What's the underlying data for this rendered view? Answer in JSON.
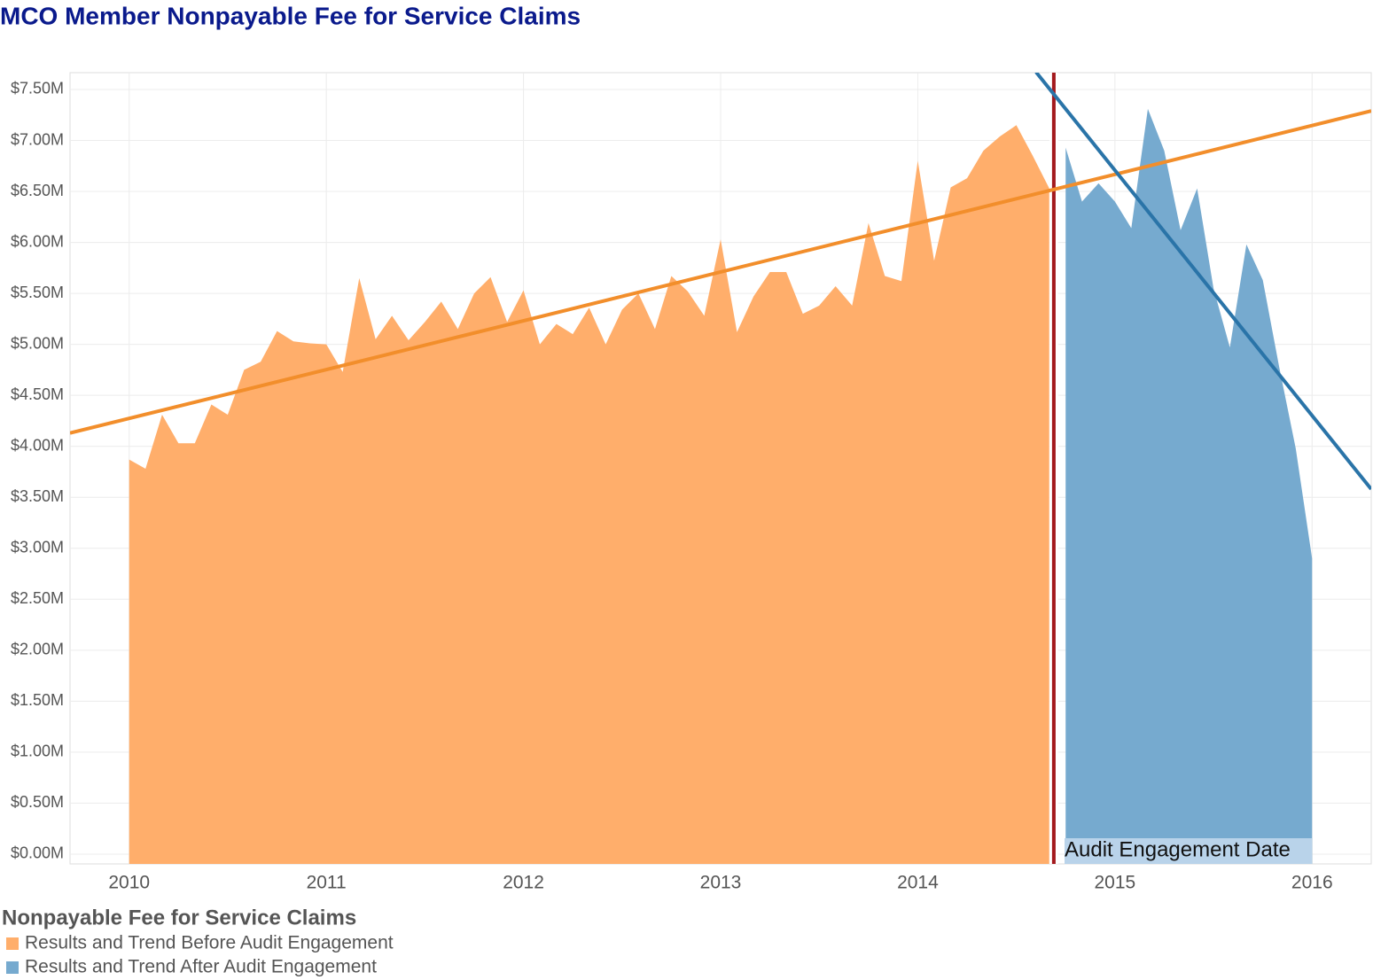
{
  "chart_data": {
    "type": "area",
    "title": "MCO Member Nonpayable Fee for Service Claims",
    "xlim": [
      2009.7,
      2016.3
    ],
    "xticks": [
      2010,
      2011,
      2012,
      2013,
      2014,
      2015,
      2016
    ],
    "ylim": [
      -0.096,
      7.665
    ],
    "yticks": [
      {
        "value": 0,
        "label": "$0.00M"
      },
      {
        "value": 0.5,
        "label": "$0.50M"
      },
      {
        "value": 1,
        "label": "$1.00M"
      },
      {
        "value": 1.5,
        "label": "$1.50M"
      },
      {
        "value": 2,
        "label": "$2.00M"
      },
      {
        "value": 2.5,
        "label": "$2.50M"
      },
      {
        "value": 3,
        "label": "$3.00M"
      },
      {
        "value": 3.5,
        "label": "$3.50M"
      },
      {
        "value": 4,
        "label": "$4.00M"
      },
      {
        "value": 4.5,
        "label": "$4.50M"
      },
      {
        "value": 5,
        "label": "$5.00M"
      },
      {
        "value": 5.5,
        "label": "$5.50M"
      },
      {
        "value": 6,
        "label": "$6.00M"
      },
      {
        "value": 6.5,
        "label": "$6.50M"
      },
      {
        "value": 7,
        "label": "$7.00M"
      },
      {
        "value": 7.5,
        "label": "$7.50M"
      }
    ],
    "grid": true,
    "legend_title": "Nonpayable Fee for Service Claims",
    "series": [
      {
        "name": "Results and Trend Before Audit Engagement",
        "color": "#ffae6b",
        "trend_color": "#f28e2b",
        "x": [
          2010.0,
          2010.083,
          2010.167,
          2010.25,
          2010.333,
          2010.417,
          2010.5,
          2010.583,
          2010.667,
          2010.75,
          2010.833,
          2010.917,
          2011.0,
          2011.083,
          2011.167,
          2011.25,
          2011.333,
          2011.417,
          2011.5,
          2011.583,
          2011.667,
          2011.75,
          2011.833,
          2011.917,
          2012.0,
          2012.083,
          2012.167,
          2012.25,
          2012.333,
          2012.417,
          2012.5,
          2012.583,
          2012.667,
          2012.75,
          2012.833,
          2012.917,
          2013.0,
          2013.083,
          2013.167,
          2013.25,
          2013.333,
          2013.417,
          2013.5,
          2013.583,
          2013.667,
          2013.75,
          2013.833,
          2013.917,
          2014.0,
          2014.083,
          2014.167,
          2014.25,
          2014.333,
          2014.417,
          2014.5,
          2014.583,
          2014.667
        ],
        "values": [
          3.87,
          3.78,
          4.31,
          4.03,
          4.03,
          4.41,
          4.31,
          4.75,
          4.83,
          5.13,
          5.03,
          5.01,
          5.0,
          4.73,
          5.65,
          5.05,
          5.28,
          5.04,
          5.22,
          5.42,
          5.15,
          5.5,
          5.66,
          5.22,
          5.53,
          5.0,
          5.2,
          5.1,
          5.36,
          5.0,
          5.34,
          5.5,
          5.15,
          5.67,
          5.52,
          5.28,
          6.03,
          5.12,
          5.47,
          5.71,
          5.71,
          5.3,
          5.38,
          5.57,
          5.38,
          6.19,
          5.67,
          5.62,
          6.8,
          5.82,
          6.54,
          6.63,
          6.9,
          7.04,
          7.15,
          6.85,
          6.53
        ],
        "trend_x": [
          2009.7,
          2016.3
        ],
        "trend_values": [
          4.13,
          7.29
        ]
      },
      {
        "name": "Results and Trend After Audit Engagement",
        "color": "#76aacf",
        "trend_color": "#2a74a8",
        "x": [
          2014.75,
          2014.833,
          2014.917,
          2015.0,
          2015.083,
          2015.167,
          2015.25,
          2015.333,
          2015.417,
          2015.5,
          2015.583,
          2015.667,
          2015.75,
          2015.833,
          2015.917,
          2016.0
        ],
        "values": [
          6.93,
          6.4,
          6.58,
          6.4,
          6.14,
          7.31,
          6.9,
          6.12,
          6.53,
          5.55,
          4.97,
          5.98,
          5.63,
          4.78,
          3.98,
          2.9
        ],
        "trend_x": [
          2014.6,
          2016.3
        ],
        "trend_values": [
          7.67,
          3.58
        ]
      }
    ],
    "annotation": {
      "text": "Audit Engagement Date",
      "x": 2014.69
    }
  }
}
